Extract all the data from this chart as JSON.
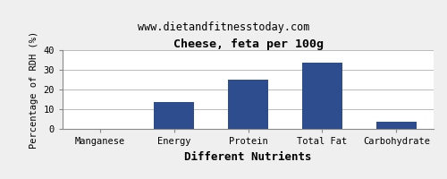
{
  "title": "Cheese, feta per 100g",
  "subtitle": "www.dietandfitnesstoday.com",
  "xlabel": "Different Nutrients",
  "ylabel": "Percentage of RDH (%)",
  "categories": [
    "Manganese",
    "Energy",
    "Protein",
    "Total Fat",
    "Carbohydrate"
  ],
  "values": [
    0.2,
    13.5,
    25.0,
    33.5,
    3.5
  ],
  "bar_color": "#2d4d8e",
  "ylim": [
    0,
    40
  ],
  "yticks": [
    0,
    10,
    20,
    30,
    40
  ],
  "background_color": "#efefef",
  "plot_background": "#ffffff",
  "grid_color": "#bbbbbb",
  "title_fontsize": 9.5,
  "subtitle_fontsize": 8.5,
  "xlabel_fontsize": 9,
  "ylabel_fontsize": 7.5,
  "tick_fontsize": 7.5
}
